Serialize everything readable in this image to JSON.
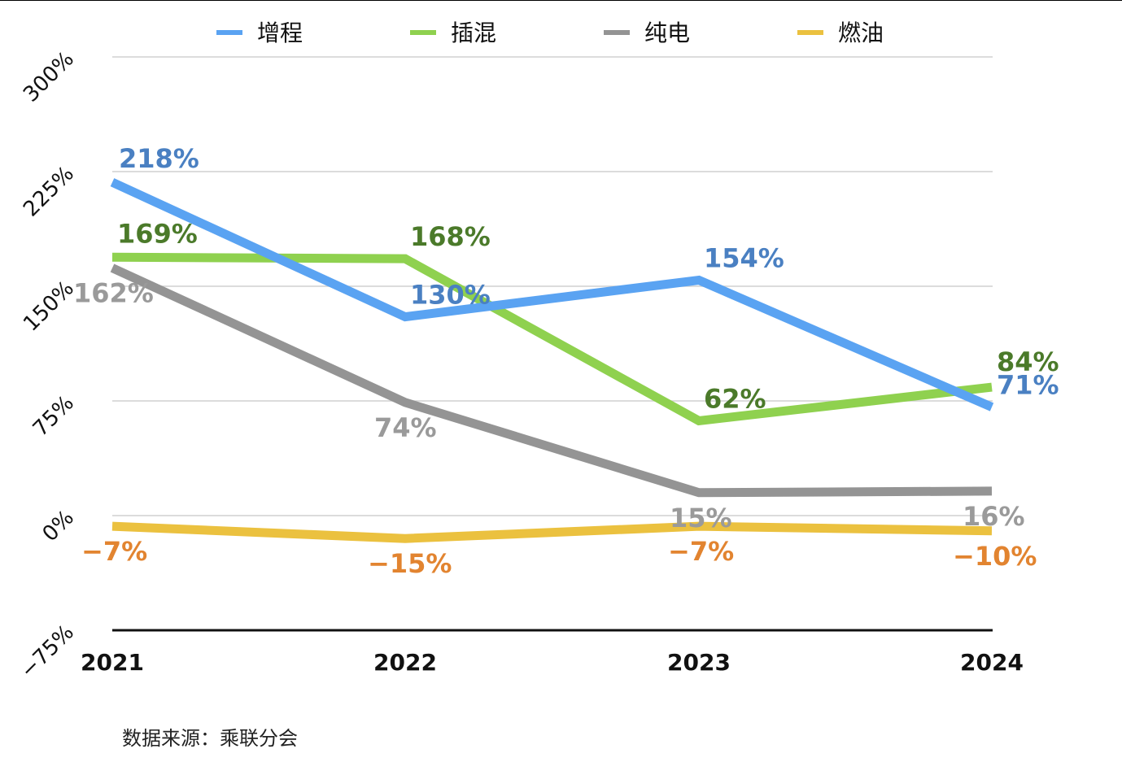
{
  "source_note": "数据来源：乘联分会",
  "chart_data": {
    "type": "line",
    "categories": [
      "2021",
      "2022",
      "2023",
      "2024"
    ],
    "ylim": [
      -75,
      300
    ],
    "yticks": [
      -75,
      0,
      75,
      150,
      225,
      300
    ],
    "ytick_labels": [
      "−75%",
      "0%",
      "75%",
      "150%",
      "225%",
      "300%"
    ],
    "grid": true,
    "legend_position": "top",
    "series": [
      {
        "name": "增程",
        "color": "#5aa3f2",
        "label_color": "#4a80c2",
        "values": [
          218,
          130,
          154,
          71
        ],
        "labels": [
          "218%",
          "130%",
          "154%",
          "71%"
        ]
      },
      {
        "name": "插混",
        "color": "#8fd14f",
        "label_color": "#4b7a2a",
        "values": [
          169,
          168,
          62,
          84
        ],
        "labels": [
          "169%",
          "168%",
          "62%",
          "84%"
        ]
      },
      {
        "name": "纯电",
        "color": "#949494",
        "label_color": "#9a9a9a",
        "values": [
          162,
          74,
          15,
          16
        ],
        "labels": [
          "162%",
          "74%",
          "15%",
          "16%"
        ]
      },
      {
        "name": "燃油",
        "color": "#ebc13f",
        "label_color": "#e28430",
        "values": [
          -7,
          -15,
          -7,
          -10
        ],
        "labels": [
          "−7%",
          "−15%",
          "−7%",
          "−10%"
        ]
      }
    ]
  }
}
